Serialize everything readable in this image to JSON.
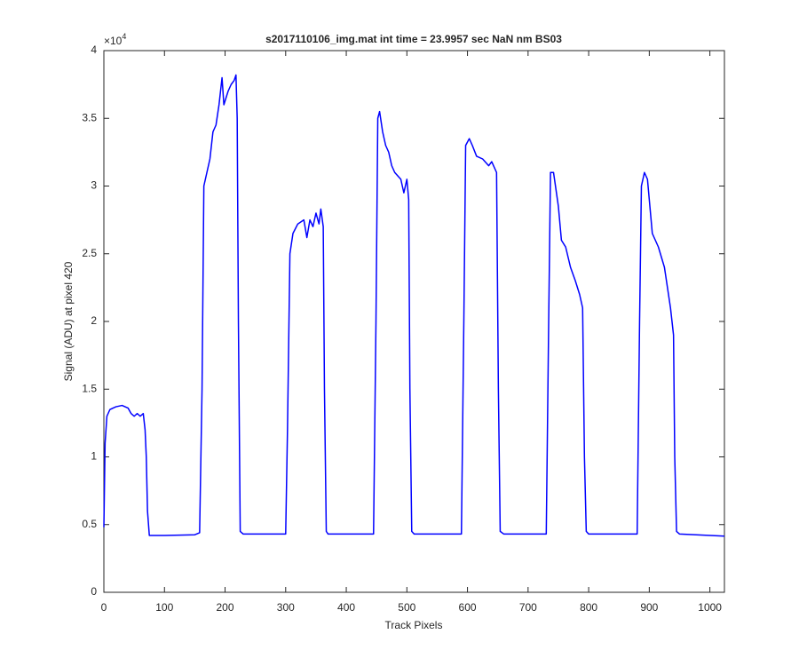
{
  "chart_data": {
    "type": "line",
    "title": "s2017110106_img.mat int time = 23.9957 sec  NaN nm BS03",
    "x_label": "Track Pixels",
    "y_label": "Signal (ADU) at pixel 420",
    "y_multiplier": "×10",
    "y_multiplier_exponent": "4",
    "xlim": [
      0,
      1024
    ],
    "ylim": [
      0,
      4
    ],
    "xticks": [
      0,
      100,
      200,
      300,
      400,
      500,
      600,
      700,
      800,
      900,
      1000
    ],
    "yticks": [
      0,
      0.5,
      1,
      1.5,
      2,
      2.5,
      3,
      3.5,
      4
    ],
    "grid": false,
    "x": [
      0,
      2,
      5,
      10,
      20,
      30,
      40,
      45,
      50,
      55,
      60,
      65,
      68,
      70,
      72,
      75,
      100,
      150,
      158,
      162,
      165,
      170,
      175,
      180,
      185,
      190,
      195,
      198,
      205,
      210,
      215,
      218,
      220,
      222,
      225,
      230,
      300,
      303,
      307,
      312,
      320,
      330,
      335,
      340,
      345,
      350,
      355,
      358,
      362,
      364,
      367,
      370,
      445,
      449,
      452,
      455,
      460,
      465,
      470,
      475,
      480,
      490,
      495,
      500,
      503,
      505,
      508,
      512,
      590,
      594,
      597,
      603,
      608,
      615,
      625,
      635,
      640,
      648,
      651,
      654,
      660,
      730,
      734,
      737,
      742,
      750,
      755,
      762,
      770,
      778,
      785,
      790,
      793,
      796,
      800,
      880,
      884,
      887,
      892,
      897,
      905,
      915,
      925,
      935,
      940,
      942,
      945,
      950,
      1024
    ],
    "series": [
      {
        "name": "Signal",
        "color": "#0000ff",
        "values": [
          0.48,
          1.1,
          1.3,
          1.35,
          1.37,
          1.38,
          1.36,
          1.32,
          1.3,
          1.32,
          1.3,
          1.32,
          1.2,
          1.0,
          0.6,
          0.42,
          0.42,
          0.425,
          0.44,
          1.5,
          3.0,
          3.1,
          3.2,
          3.4,
          3.45,
          3.6,
          3.8,
          3.6,
          3.7,
          3.75,
          3.78,
          3.82,
          3.5,
          2.0,
          0.45,
          0.43,
          0.43,
          1.2,
          2.5,
          2.65,
          2.72,
          2.75,
          2.62,
          2.75,
          2.7,
          2.8,
          2.72,
          2.83,
          2.7,
          1.5,
          0.45,
          0.43,
          0.43,
          2.0,
          3.5,
          3.55,
          3.4,
          3.3,
          3.25,
          3.15,
          3.1,
          3.05,
          2.95,
          3.05,
          2.9,
          1.5,
          0.45,
          0.43,
          0.43,
          2.0,
          3.3,
          3.35,
          3.3,
          3.22,
          3.2,
          3.15,
          3.18,
          3.1,
          1.5,
          0.45,
          0.43,
          0.43,
          2.0,
          3.1,
          3.1,
          2.85,
          2.6,
          2.55,
          2.4,
          2.3,
          2.2,
          2.1,
          1.0,
          0.45,
          0.43,
          0.43,
          2.0,
          3.0,
          3.1,
          3.05,
          2.65,
          2.55,
          2.4,
          2.1,
          1.9,
          1.0,
          0.45,
          0.43,
          0.415
        ]
      }
    ]
  }
}
